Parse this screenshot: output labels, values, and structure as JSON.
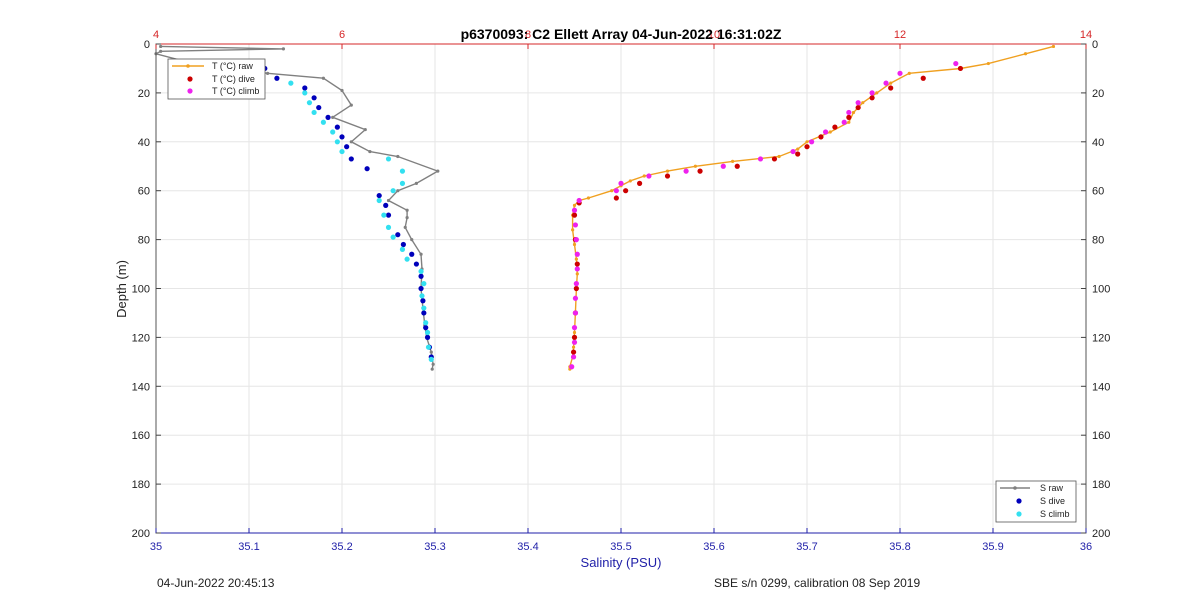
{
  "chart_data": {
    "type": "scatter",
    "title": "p6370093: C2 Ellett Array 04-Jun-2022 16:31:02Z",
    "xlabel": "Salinity (PSU)",
    "ylabel": "Depth (m)",
    "xlim": [
      35,
      36
    ],
    "x_ticks": [
      "35",
      "35.1",
      "35.2",
      "35.3",
      "35.4",
      "35.5",
      "35.6",
      "35.7",
      "35.8",
      "35.9",
      "36"
    ],
    "top_xlim": [
      4,
      14
    ],
    "top_ticks": [
      "4",
      "6",
      "8",
      "10",
      "12",
      "14"
    ],
    "ylim": [
      200,
      0
    ],
    "y_ticks": [
      "0",
      "20",
      "40",
      "60",
      "80",
      "100",
      "120",
      "140",
      "160",
      "180",
      "200"
    ],
    "grid": true,
    "colors": {
      "title": "#000000",
      "top_axis": "#d62728",
      "bottom_axis": "#1f1fa8",
      "T_raw": "#f0a020",
      "T_dive": "#cc0000",
      "T_climb": "#ee22ee",
      "S_raw": "#808080",
      "S_dive": "#0000bb",
      "S_climb": "#33e0f0"
    },
    "legend_temperature": {
      "position": "top-left",
      "entries": [
        "T (°C) raw",
        "T (°C) dive",
        "T (°C) climb"
      ]
    },
    "legend_salinity": {
      "position": "bottom-right",
      "entries": [
        "S raw",
        "S dive",
        "S climb"
      ]
    },
    "series": [
      {
        "name": "S raw",
        "axis": "salinity",
        "style": "line",
        "points": [
          [
            35.005,
            1
          ],
          [
            35.137,
            2
          ],
          [
            35.005,
            3
          ],
          [
            35.0,
            4
          ],
          [
            35.04,
            8
          ],
          [
            35.08,
            10
          ],
          [
            35.12,
            12
          ],
          [
            35.18,
            14
          ],
          [
            35.2,
            19
          ],
          [
            35.21,
            25
          ],
          [
            35.19,
            30
          ],
          [
            35.225,
            35
          ],
          [
            35.21,
            40
          ],
          [
            35.23,
            44
          ],
          [
            35.26,
            46
          ],
          [
            35.303,
            52
          ],
          [
            35.28,
            57
          ],
          [
            35.26,
            60
          ],
          [
            35.25,
            64
          ],
          [
            35.27,
            68
          ],
          [
            35.27,
            71
          ],
          [
            35.268,
            75
          ],
          [
            35.275,
            80
          ],
          [
            35.285,
            86
          ],
          [
            35.286,
            92
          ],
          [
            35.285,
            100
          ],
          [
            35.287,
            108
          ],
          [
            35.289,
            115
          ],
          [
            35.291,
            120
          ],
          [
            35.296,
            126
          ],
          [
            35.298,
            131
          ],
          [
            35.297,
            133
          ]
        ]
      },
      {
        "name": "S dive",
        "axis": "salinity",
        "style": "dots",
        "points": [
          [
            35.117,
            10
          ],
          [
            35.13,
            14
          ],
          [
            35.16,
            18
          ],
          [
            35.17,
            22
          ],
          [
            35.175,
            26
          ],
          [
            35.185,
            30
          ],
          [
            35.195,
            34
          ],
          [
            35.2,
            38
          ],
          [
            35.205,
            42
          ],
          [
            35.21,
            47
          ],
          [
            35.227,
            51
          ],
          [
            35.24,
            62
          ],
          [
            35.247,
            66
          ],
          [
            35.25,
            70
          ],
          [
            35.26,
            78
          ],
          [
            35.266,
            82
          ],
          [
            35.275,
            86
          ],
          [
            35.28,
            90
          ],
          [
            35.285,
            95
          ],
          [
            35.285,
            100
          ],
          [
            35.287,
            105
          ],
          [
            35.288,
            110
          ],
          [
            35.29,
            116
          ],
          [
            35.292,
            120
          ],
          [
            35.294,
            124
          ],
          [
            35.296,
            128
          ]
        ]
      },
      {
        "name": "S climb",
        "axis": "salinity",
        "style": "dots",
        "points": [
          [
            35.07,
            8
          ],
          [
            35.1,
            12
          ],
          [
            35.145,
            16
          ],
          [
            35.16,
            20
          ],
          [
            35.165,
            24
          ],
          [
            35.17,
            28
          ],
          [
            35.18,
            32
          ],
          [
            35.19,
            36
          ],
          [
            35.195,
            40
          ],
          [
            35.2,
            44
          ],
          [
            35.25,
            47
          ],
          [
            35.265,
            52
          ],
          [
            35.265,
            57
          ],
          [
            35.255,
            60
          ],
          [
            35.24,
            64
          ],
          [
            35.245,
            70
          ],
          [
            35.25,
            75
          ],
          [
            35.255,
            79
          ],
          [
            35.265,
            84
          ],
          [
            35.27,
            88
          ],
          [
            35.285,
            93
          ],
          [
            35.288,
            98
          ],
          [
            35.286,
            103
          ],
          [
            35.288,
            108
          ],
          [
            35.29,
            114
          ],
          [
            35.292,
            118
          ],
          [
            35.293,
            124
          ],
          [
            35.296,
            129
          ]
        ]
      },
      {
        "name": "T (°C) raw",
        "axis": "temperature",
        "style": "line",
        "points": [
          [
            13.65,
            1
          ],
          [
            13.35,
            4
          ],
          [
            12.95,
            8
          ],
          [
            12.65,
            10
          ],
          [
            12.1,
            12
          ],
          [
            11.9,
            16
          ],
          [
            11.75,
            20
          ],
          [
            11.6,
            24
          ],
          [
            11.5,
            28
          ],
          [
            11.45,
            32
          ],
          [
            11.25,
            36
          ],
          [
            11.0,
            40
          ],
          [
            10.9,
            43
          ],
          [
            10.7,
            46
          ],
          [
            10.2,
            48
          ],
          [
            9.8,
            50
          ],
          [
            9.5,
            52
          ],
          [
            9.25,
            54
          ],
          [
            9.1,
            56
          ],
          [
            9.0,
            58
          ],
          [
            8.9,
            60
          ],
          [
            8.65,
            63
          ],
          [
            8.55,
            64
          ],
          [
            8.5,
            66
          ],
          [
            8.48,
            70
          ],
          [
            8.48,
            76
          ],
          [
            8.5,
            82
          ],
          [
            8.52,
            88
          ],
          [
            8.53,
            94
          ],
          [
            8.52,
            100
          ],
          [
            8.51,
            110
          ],
          [
            8.5,
            118
          ],
          [
            8.49,
            124
          ],
          [
            8.48,
            128
          ],
          [
            8.45,
            132
          ],
          [
            8.45,
            133
          ]
        ]
      },
      {
        "name": "T (°C) dive",
        "axis": "temperature",
        "style": "dots",
        "points": [
          [
            12.65,
            10
          ],
          [
            12.25,
            14
          ],
          [
            11.9,
            18
          ],
          [
            11.7,
            22
          ],
          [
            11.55,
            26
          ],
          [
            11.45,
            30
          ],
          [
            11.3,
            34
          ],
          [
            11.15,
            38
          ],
          [
            11.0,
            42
          ],
          [
            10.9,
            45
          ],
          [
            10.65,
            47
          ],
          [
            10.25,
            50
          ],
          [
            9.85,
            52
          ],
          [
            9.5,
            54
          ],
          [
            9.2,
            57
          ],
          [
            9.05,
            60
          ],
          [
            8.95,
            63
          ],
          [
            8.55,
            65
          ],
          [
            8.5,
            70
          ],
          [
            8.51,
            80
          ],
          [
            8.53,
            90
          ],
          [
            8.52,
            100
          ],
          [
            8.51,
            110
          ],
          [
            8.5,
            120
          ],
          [
            8.49,
            126
          ]
        ]
      },
      {
        "name": "T (°C) climb",
        "axis": "temperature",
        "style": "dots",
        "points": [
          [
            12.6,
            8
          ],
          [
            12.0,
            12
          ],
          [
            11.85,
            16
          ],
          [
            11.7,
            20
          ],
          [
            11.55,
            24
          ],
          [
            11.45,
            28
          ],
          [
            11.4,
            32
          ],
          [
            11.2,
            36
          ],
          [
            11.05,
            40
          ],
          [
            10.85,
            44
          ],
          [
            10.5,
            47
          ],
          [
            10.1,
            50
          ],
          [
            9.7,
            52
          ],
          [
            9.3,
            54
          ],
          [
            9.0,
            57
          ],
          [
            8.95,
            60
          ],
          [
            8.55,
            64
          ],
          [
            8.5,
            68
          ],
          [
            8.51,
            74
          ],
          [
            8.52,
            80
          ],
          [
            8.53,
            86
          ],
          [
            8.53,
            92
          ],
          [
            8.52,
            98
          ],
          [
            8.51,
            104
          ],
          [
            8.51,
            110
          ],
          [
            8.5,
            116
          ],
          [
            8.5,
            122
          ],
          [
            8.49,
            128
          ],
          [
            8.47,
            132
          ]
        ]
      }
    ]
  },
  "footer": {
    "left": "04-Jun-2022 20:45:13",
    "right": "SBE s/n 0299, calibration 08 Sep 2019"
  }
}
